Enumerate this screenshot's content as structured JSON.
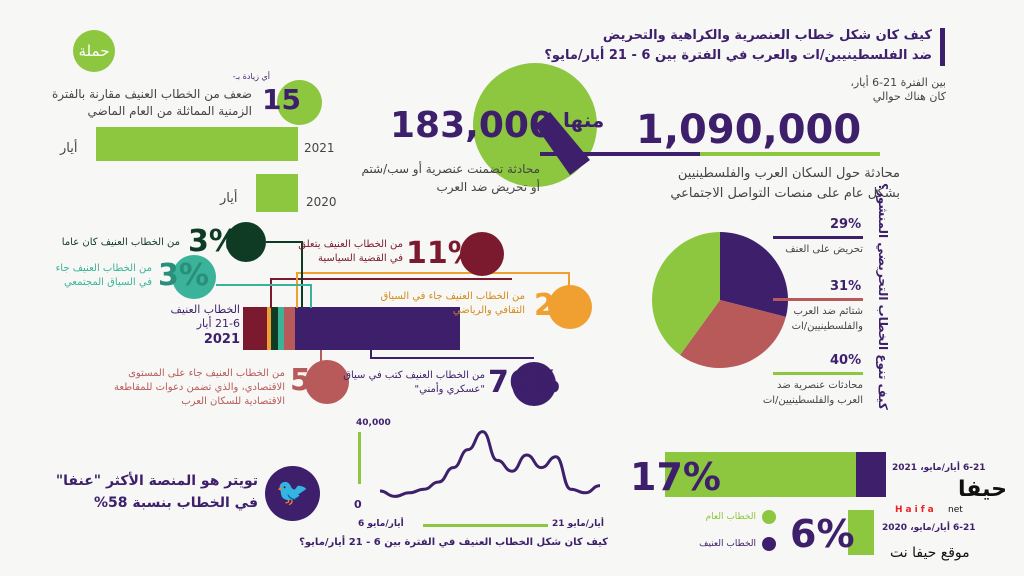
{
  "title": {
    "line1": "كيف كان شكل خطاب العنصرية والكراهية والتحريض",
    "line2": "ضد الفلسطينيين/ات والعرب في الفترة بين 6 - 21 أيار/مايو؟"
  },
  "logo": {
    "text": "حملة"
  },
  "total": {
    "intro1": "بين الفترة 21-6 أيار،",
    "intro2": "كان هناك حوالي",
    "value": "1,090,000",
    "desc1": "محادثة حول السكان العرب والفلسطينيين",
    "desc2": "بشكل عام على منصات التواصل الاجتماعي"
  },
  "subset": {
    "label": "منها",
    "value": "183,000",
    "desc1": "محادثة تضمنت عنصرية أو سب/شتم",
    "desc2": "أو تحريض ضد العرب"
  },
  "increase": {
    "prefix": "أي زيادة بـ-",
    "value": "15",
    "desc1": "ضعف من الخطاب العنيف مقارنة بالفترة",
    "desc2": "الزمنية المماثلة من العام الماضي",
    "bars": [
      {
        "year": "2021",
        "month": "أيار"
      },
      {
        "year": "2020",
        "month": "أيار"
      }
    ]
  },
  "stack": {
    "label1": "الخطاب العنيف",
    "label2": "21-6 أيار",
    "label3": "2021",
    "callouts": [
      {
        "pct": "11%",
        "text1": "من الخطاب العنيف يتعلق",
        "text2": "في القضية السياسية"
      },
      {
        "pct": "2%",
        "text1": "من الخطاب العنيف جاء في السياق",
        "text2": "الثقافي والرياضي"
      },
      {
        "pct": "3%",
        "text1": "من الخطاب العنيف كان عاما",
        "text2": ""
      },
      {
        "pct": "3%",
        "text1": "من الخطاب العنيف جاء",
        "text2": "في السياق المجتمعي"
      },
      {
        "pct": "5%",
        "text1": "من الخطاب العنيف جاء على المستوى",
        "text2": "الاقتصادي، والذي تضمن دعوات للمقاطعة",
        "text3": "الاقتصادية للسكان العرب"
      },
      {
        "pct": "76%",
        "text1": "من الخطاب العنيف كتب في سياق",
        "text2": "\"عسكري وأمني\""
      }
    ]
  },
  "pie": {
    "title": "كيف تنوع الخطاب التحريضي المنشور؟",
    "items": [
      {
        "pct": "29%",
        "label1": "تحريض على العنف",
        "label2": ""
      },
      {
        "pct": "31%",
        "label1": "شتائم ضد العرب",
        "label2": "والفلسطينيين/ات"
      },
      {
        "pct": "40%",
        "label1": "محادثات عنصرية ضد",
        "label2": "العرب والفلسطينيين/ات"
      }
    ]
  },
  "twitter": {
    "line1": "تويتر هو المنصة الأكثر \"عنفا\"",
    "line2": "في الخطاب بنسبة 58%"
  },
  "line": {
    "ymax": "40,000",
    "ymin": "0",
    "start": "6 أيار/مايو",
    "end": "21 أيار/مايو",
    "caption": "كيف كان شكل الخطاب العنيف في الفترة بين 6 - 21 أيار/مايو؟"
  },
  "compare": {
    "pct1": "17%",
    "pct2": "6%",
    "period1": "6-21 أيار/مايو، 2021",
    "period2": "6-21 أيار/مايو، 2020",
    "legend_general": "الخطاب العام",
    "legend_violent": "الخطاب العنيف"
  },
  "watermark": {
    "logo": "حيفا",
    "latin": "Haifa",
    "net": "net",
    "site": "موقع حيفا نت"
  },
  "colors": {
    "purple": "#3d1f6b",
    "green": "#8dc63f",
    "darkred": "#7b1a2e",
    "orange": "#f0a030",
    "darkgreen": "#0f3b25",
    "teal": "#3bb39a",
    "rose": "#b85a5a"
  },
  "chart_data": [
    {
      "type": "bar",
      "title": "Violent speech stacked bar 6-21 May 2021",
      "categories": [
        "political",
        "cultural/sports",
        "general",
        "social",
        "economic",
        "military/security"
      ],
      "values": [
        11,
        2,
        3,
        3,
        5,
        76
      ]
    },
    {
      "type": "pie",
      "title": "كيف تنوع الخطاب التحريضي المنشور؟",
      "categories": [
        "تحريض على العنف",
        "شتائم ضد العرب والفلسطينيين/ات",
        "محادثات عنصرية ضد العرب والفلسطينيين/ات"
      ],
      "values": [
        29,
        31,
        40
      ]
    },
    {
      "type": "line",
      "title": "كيف كان شكل الخطاب العنيف في الفترة بين 6 - 21 أيار/مايو؟",
      "x": [
        6,
        7,
        8,
        9,
        10,
        11,
        12,
        13,
        14,
        15,
        16,
        17,
        18,
        19,
        20,
        21
      ],
      "values": [
        5000,
        2000,
        4000,
        6000,
        10000,
        18000,
        28000,
        38000,
        22000,
        16000,
        25000,
        18000,
        24000,
        6000,
        4000,
        8000
      ],
      "ylim": [
        0,
        40000
      ]
    },
    {
      "type": "bar",
      "title": "share of violent speech",
      "categories": [
        "2021",
        "2020"
      ],
      "values": [
        17,
        6
      ]
    }
  ]
}
